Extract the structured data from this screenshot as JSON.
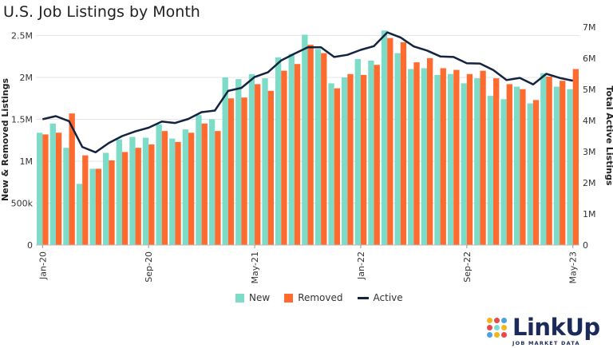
{
  "chart_data": {
    "type": "bar",
    "title": "U.S. Job Listings by Month",
    "ylabel_left": "New & Removed Listings",
    "ylabel_right": "Total Active Listings",
    "left_ticks": [
      "0",
      "500k",
      "1M",
      "1.5M",
      "2M",
      "2.5M"
    ],
    "left_tick_values": [
      0,
      500000,
      1000000,
      1500000,
      2000000,
      2500000
    ],
    "left_ylim": [
      0,
      2600000
    ],
    "right_ticks": [
      "0",
      "1M",
      "2M",
      "3M",
      "4M",
      "5M",
      "6M",
      "7M"
    ],
    "right_tick_values": [
      0,
      1000000,
      2000000,
      3000000,
      4000000,
      5000000,
      6000000,
      7000000
    ],
    "right_ylim": [
      0,
      7000000
    ],
    "x_tick_labels": [
      "Jan-20",
      "Sep-20",
      "May-21",
      "Jan-22",
      "Sep-22",
      "May-23"
    ],
    "x_tick_indices": [
      0,
      8,
      16,
      24,
      32,
      40
    ],
    "months": [
      "Jan-20",
      "Feb-20",
      "Mar-20",
      "Apr-20",
      "May-20",
      "Jun-20",
      "Jul-20",
      "Aug-20",
      "Sep-20",
      "Oct-20",
      "Nov-20",
      "Dec-20",
      "Jan-21",
      "Feb-21",
      "Mar-21",
      "Apr-21",
      "May-21",
      "Jun-21",
      "Jul-21",
      "Aug-21",
      "Sep-21",
      "Oct-21",
      "Nov-21",
      "Dec-21",
      "Jan-22",
      "Feb-22",
      "Mar-22",
      "Apr-22",
      "May-22",
      "Jun-22",
      "Jul-22",
      "Aug-22",
      "Sep-22",
      "Oct-22",
      "Nov-22",
      "Dec-22",
      "Jan-23",
      "Feb-23",
      "Mar-23",
      "Apr-23",
      "May-23"
    ],
    "grid": "horizontal",
    "legend_position": "bottom",
    "series": [
      {
        "name": "New",
        "type": "bar",
        "axis": "left",
        "color": "#7ddcc7",
        "values": [
          1340000,
          1450000,
          1160000,
          730000,
          910000,
          1100000,
          1260000,
          1290000,
          1280000,
          1440000,
          1270000,
          1380000,
          1550000,
          1500000,
          2000000,
          1980000,
          2040000,
          1990000,
          2240000,
          2280000,
          2510000,
          2340000,
          1930000,
          2000000,
          2220000,
          2200000,
          2560000,
          2290000,
          2100000,
          2110000,
          2030000,
          2040000,
          1930000,
          1990000,
          1780000,
          1740000,
          1890000,
          1690000,
          2050000,
          1890000,
          1860000
        ]
      },
      {
        "name": "Removed",
        "type": "bar",
        "axis": "left",
        "color": "#ff6a2e",
        "values": [
          1320000,
          1340000,
          1570000,
          1070000,
          910000,
          1010000,
          1110000,
          1160000,
          1200000,
          1360000,
          1230000,
          1340000,
          1450000,
          1360000,
          1750000,
          1760000,
          1920000,
          1840000,
          2080000,
          2160000,
          2390000,
          2290000,
          1870000,
          2040000,
          2030000,
          2150000,
          2470000,
          2420000,
          2180000,
          2230000,
          2110000,
          2090000,
          2040000,
          2080000,
          1990000,
          1920000,
          1860000,
          1730000,
          2010000,
          1960000,
          2100000
        ]
      },
      {
        "name": "Active",
        "type": "line",
        "axis": "right",
        "color": "#14233f",
        "values": [
          4040000,
          4140000,
          3980000,
          3150000,
          2980000,
          3280000,
          3500000,
          3650000,
          3770000,
          3970000,
          3920000,
          4050000,
          4270000,
          4320000,
          4950000,
          5050000,
          5400000,
          5550000,
          5930000,
          6150000,
          6350000,
          6350000,
          6040000,
          6110000,
          6270000,
          6390000,
          6830000,
          6670000,
          6380000,
          6250000,
          6060000,
          6040000,
          5840000,
          5830000,
          5620000,
          5300000,
          5370000,
          5160000,
          5500000,
          5370000,
          5280000
        ]
      }
    ]
  },
  "legend": {
    "new": "New",
    "removed": "Removed",
    "active": "Active"
  },
  "logo": {
    "name": "LinkUp",
    "tagline": "JOB MARKET DATA"
  },
  "colors": {
    "new": "#7ddcc7",
    "removed": "#ff6a2e",
    "active": "#14233f",
    "logo": "#1c2a5a"
  }
}
